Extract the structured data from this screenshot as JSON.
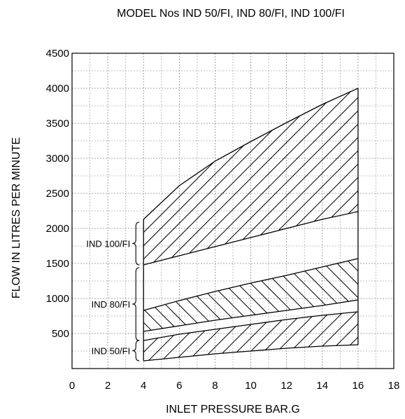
{
  "chart_data": {
    "type": "area",
    "title": "MODEL Nos  IND 50/FI, IND 80/FI, IND 100/FI",
    "xlabel": "INLET PRESSURE BAR.G",
    "ylabel": "FLOW IN LITRES PER MINUTE",
    "xlim": [
      0,
      18
    ],
    "ylim": [
      0,
      4500
    ],
    "x_ticks": [
      "0",
      "2",
      "4",
      "6",
      "8",
      "10",
      "12",
      "14",
      "16",
      "18"
    ],
    "y_ticks": [
      "500",
      "1000",
      "1500",
      "2000",
      "2500",
      "3000",
      "3500",
      "4000",
      "4500"
    ],
    "grid": true,
    "x": [
      4,
      6,
      8,
      10,
      12,
      14,
      16
    ],
    "series": [
      {
        "name": "IND 50/FI",
        "lower": [
          110,
          160,
          210,
          250,
          290,
          320,
          340
        ],
        "upper": [
          400,
          490,
          560,
          630,
          700,
          760,
          810
        ],
        "label_range": [
          110,
          400
        ]
      },
      {
        "name": "IND 80/FI",
        "lower": [
          530,
          610,
          690,
          760,
          830,
          900,
          980
        ],
        "upper": [
          830,
          970,
          1100,
          1220,
          1330,
          1450,
          1570
        ],
        "label_range": [
          400,
          1440
        ]
      },
      {
        "name": "IND 100/FI",
        "lower": [
          1480,
          1610,
          1740,
          1870,
          2000,
          2130,
          2240
        ],
        "upper": [
          2130,
          2610,
          2960,
          3240,
          3510,
          3770,
          4000
        ],
        "label_range": [
          1480,
          2090
        ]
      }
    ]
  }
}
